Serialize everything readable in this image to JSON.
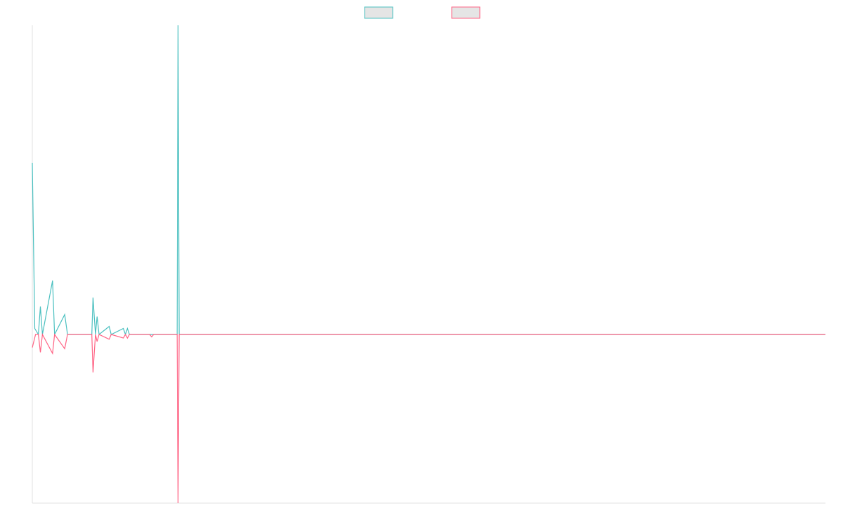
{
  "chart_data": {
    "type": "line",
    "title": "",
    "xlabel": "",
    "ylabel": "",
    "legend_position": "top-center",
    "grid": false,
    "x_range": [
      0,
      196
    ],
    "ylim": [
      -100,
      100
    ],
    "colors": {
      "series_1": "#4bc0c0",
      "series_2": "#ff6384",
      "legend_fill": "#e5e5e5",
      "axis": "#e0e0e0"
    },
    "series": [
      {
        "name": "",
        "color": "#4bc0c0",
        "points": [
          [
            0,
            86
          ],
          [
            0.6,
            3
          ],
          [
            1.5,
            0
          ],
          [
            2,
            14
          ],
          [
            2.5,
            0
          ],
          [
            5,
            27
          ],
          [
            5.5,
            0
          ],
          [
            8,
            10
          ],
          [
            8.7,
            0
          ],
          [
            14.7,
            0
          ],
          [
            15,
            18.5
          ],
          [
            15.6,
            0
          ],
          [
            16,
            9
          ],
          [
            16.5,
            0
          ],
          [
            19,
            4
          ],
          [
            19.5,
            0
          ],
          [
            22.5,
            3
          ],
          [
            23,
            0
          ],
          [
            23.5,
            3
          ],
          [
            24,
            0
          ],
          [
            35.8,
            0
          ],
          [
            36,
            155
          ],
          [
            36.3,
            0
          ],
          [
            196,
            0
          ]
        ]
      },
      {
        "name": "",
        "color": "#ff6384",
        "points": [
          [
            0,
            -5.5
          ],
          [
            0.8,
            0
          ],
          [
            1.5,
            0
          ],
          [
            2,
            -7.5
          ],
          [
            2.5,
            0
          ],
          [
            5,
            -8
          ],
          [
            5.5,
            0
          ],
          [
            8,
            -6
          ],
          [
            8.7,
            0
          ],
          [
            14.7,
            0
          ],
          [
            15,
            -16
          ],
          [
            15.6,
            0
          ],
          [
            16,
            -3
          ],
          [
            16.5,
            0
          ],
          [
            19,
            -2
          ],
          [
            19.5,
            0
          ],
          [
            22.5,
            -1.5
          ],
          [
            23,
            0
          ],
          [
            23.5,
            -1.5
          ],
          [
            24,
            0
          ],
          [
            29,
            0
          ],
          [
            29.5,
            -1
          ],
          [
            30,
            0
          ],
          [
            35.8,
            0
          ],
          [
            36,
            -71
          ],
          [
            36.3,
            0
          ],
          [
            196,
            0
          ]
        ]
      }
    ]
  }
}
